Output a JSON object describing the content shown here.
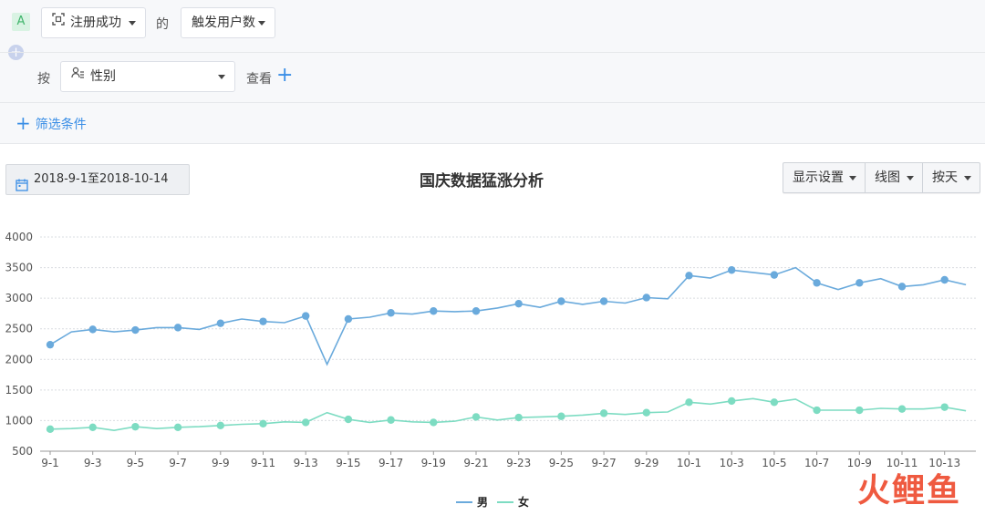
{
  "query": {
    "tag": "A",
    "event_select": "注册成功",
    "connector": "的",
    "metric_select": "触发用户数",
    "group_prefix": "按",
    "group_select": "性别",
    "view_label": "查看",
    "filter_label": "筛选条件"
  },
  "toolbar": {
    "date_range": "2018-9-1至2018-10-14",
    "display_settings": "显示设置",
    "chart_type": "线图",
    "granularity": "按天"
  },
  "colors": {
    "series_male": "#6aaadc",
    "series_female": "#7ddcc2",
    "accent": "#3a8ee6"
  },
  "watermark": "火鲤鱼",
  "chart_data": {
    "type": "line",
    "title": "国庆数据猛涨分析",
    "x": [
      "9-1",
      "9-2",
      "9-3",
      "9-4",
      "9-5",
      "9-6",
      "9-7",
      "9-8",
      "9-9",
      "9-10",
      "9-11",
      "9-12",
      "9-13",
      "9-14",
      "9-15",
      "9-16",
      "9-17",
      "9-18",
      "9-19",
      "9-20",
      "9-21",
      "9-22",
      "9-23",
      "9-24",
      "9-25",
      "9-26",
      "9-27",
      "9-28",
      "9-29",
      "9-30",
      "10-1",
      "10-2",
      "10-3",
      "10-4",
      "10-5",
      "10-6",
      "10-7",
      "10-8",
      "10-9",
      "10-10",
      "10-11",
      "10-12",
      "10-13",
      "10-14"
    ],
    "x_tick_labels": [
      "9-1",
      "9-3",
      "9-5",
      "9-7",
      "9-9",
      "9-11",
      "9-13",
      "9-15",
      "9-17",
      "9-19",
      "9-21",
      "9-23",
      "9-25",
      "9-27",
      "9-29",
      "10-1",
      "10-3",
      "10-5",
      "10-7",
      "10-9",
      "10-11",
      "10-13"
    ],
    "ylim": [
      500,
      4000
    ],
    "y_ticks": [
      500,
      1000,
      1500,
      2000,
      2500,
      3000,
      3500,
      4000
    ],
    "grid": true,
    "legend_position": "bottom-center",
    "series": [
      {
        "name": "男",
        "values": [
          2240,
          2450,
          2490,
          2450,
          2480,
          2520,
          2520,
          2490,
          2590,
          2660,
          2620,
          2600,
          2710,
          1920,
          2660,
          2690,
          2760,
          2740,
          2790,
          2780,
          2790,
          2840,
          2910,
          2850,
          2950,
          2900,
          2950,
          2920,
          3010,
          2990,
          3370,
          3330,
          3460,
          3420,
          3380,
          3500,
          3250,
          3140,
          3250,
          3320,
          3190,
          3220,
          3300,
          3220
        ]
      },
      {
        "name": "女",
        "values": [
          860,
          870,
          890,
          840,
          900,
          870,
          890,
          900,
          920,
          940,
          950,
          980,
          970,
          1130,
          1020,
          970,
          1010,
          980,
          970,
          990,
          1060,
          1010,
          1050,
          1060,
          1070,
          1090,
          1120,
          1100,
          1130,
          1140,
          1300,
          1270,
          1320,
          1360,
          1300,
          1350,
          1170,
          1170,
          1170,
          1200,
          1190,
          1190,
          1220,
          1160
        ]
      }
    ]
  }
}
